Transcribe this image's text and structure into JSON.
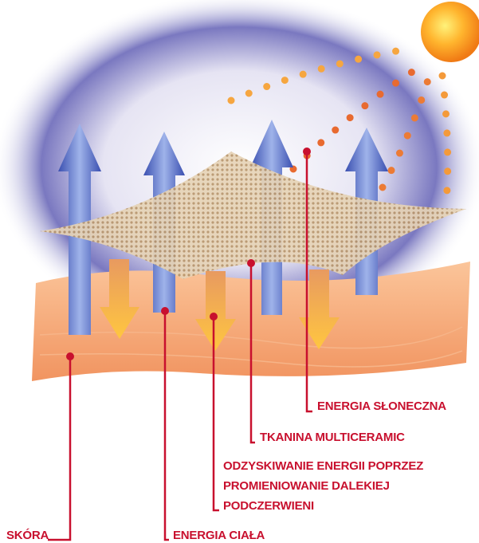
{
  "labels": {
    "solar_energy": "ENERGIA SŁONECZNA",
    "fabric": "TKANINA MULTICERAMIC",
    "recovery": [
      "ODZYSKIWANIE ENERGII POPRZEZ",
      "PROMIENIOWANIE DALEKIEJ",
      "PODCZERWIENI"
    ],
    "skin": "SKÓRA",
    "body_energy": "ENERGIA CIAŁA"
  }
}
